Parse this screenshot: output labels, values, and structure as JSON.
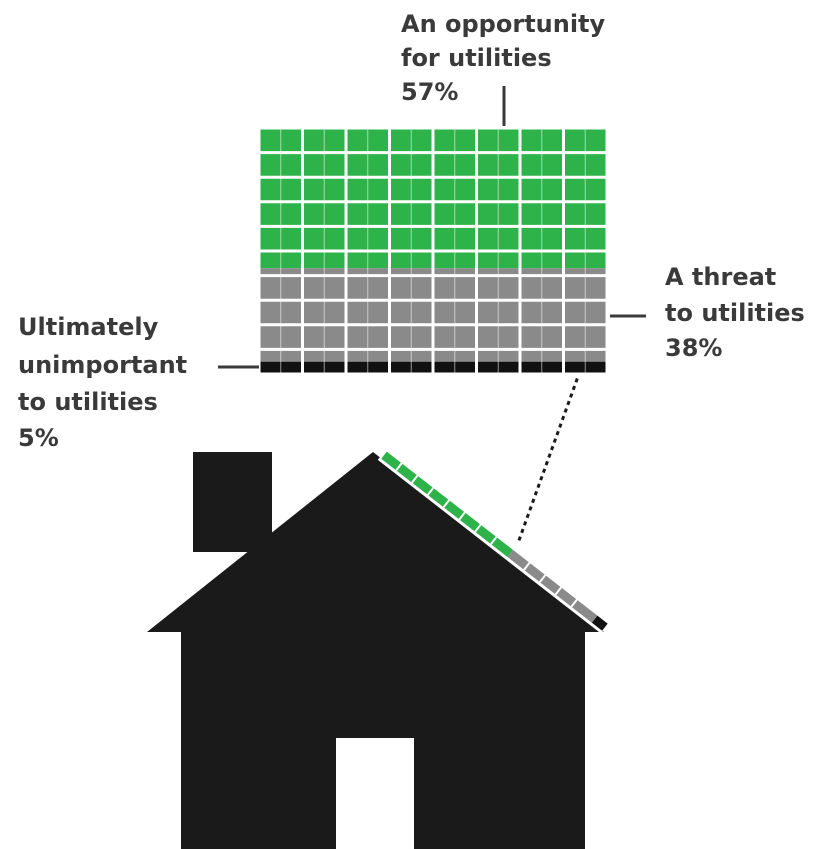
{
  "chart_data": {
    "type": "waffle",
    "slices": [
      {
        "label": "An opportunity for utilities",
        "value": 57,
        "display": "57%",
        "color": "#2db34a",
        "line1": "An opportunity",
        "line2": "for utilities"
      },
      {
        "label": "A threat to utilities",
        "value": 38,
        "display": "38%",
        "color": "#8a8a8a",
        "line1": "A threat",
        "line2": "to utilities"
      },
      {
        "label": "Ultimately unimportant to utilities",
        "value": 5,
        "display": "5%",
        "color": "#111111",
        "line1": "Ultimately",
        "line2": "unimportant",
        "line3": "to utilities"
      }
    ],
    "grid": {
      "rows": 10,
      "cols": 8
    }
  },
  "colors": {
    "house": "#1a1a1a",
    "grid_line": "#ffffff",
    "label_text": "#3a3a3a"
  }
}
